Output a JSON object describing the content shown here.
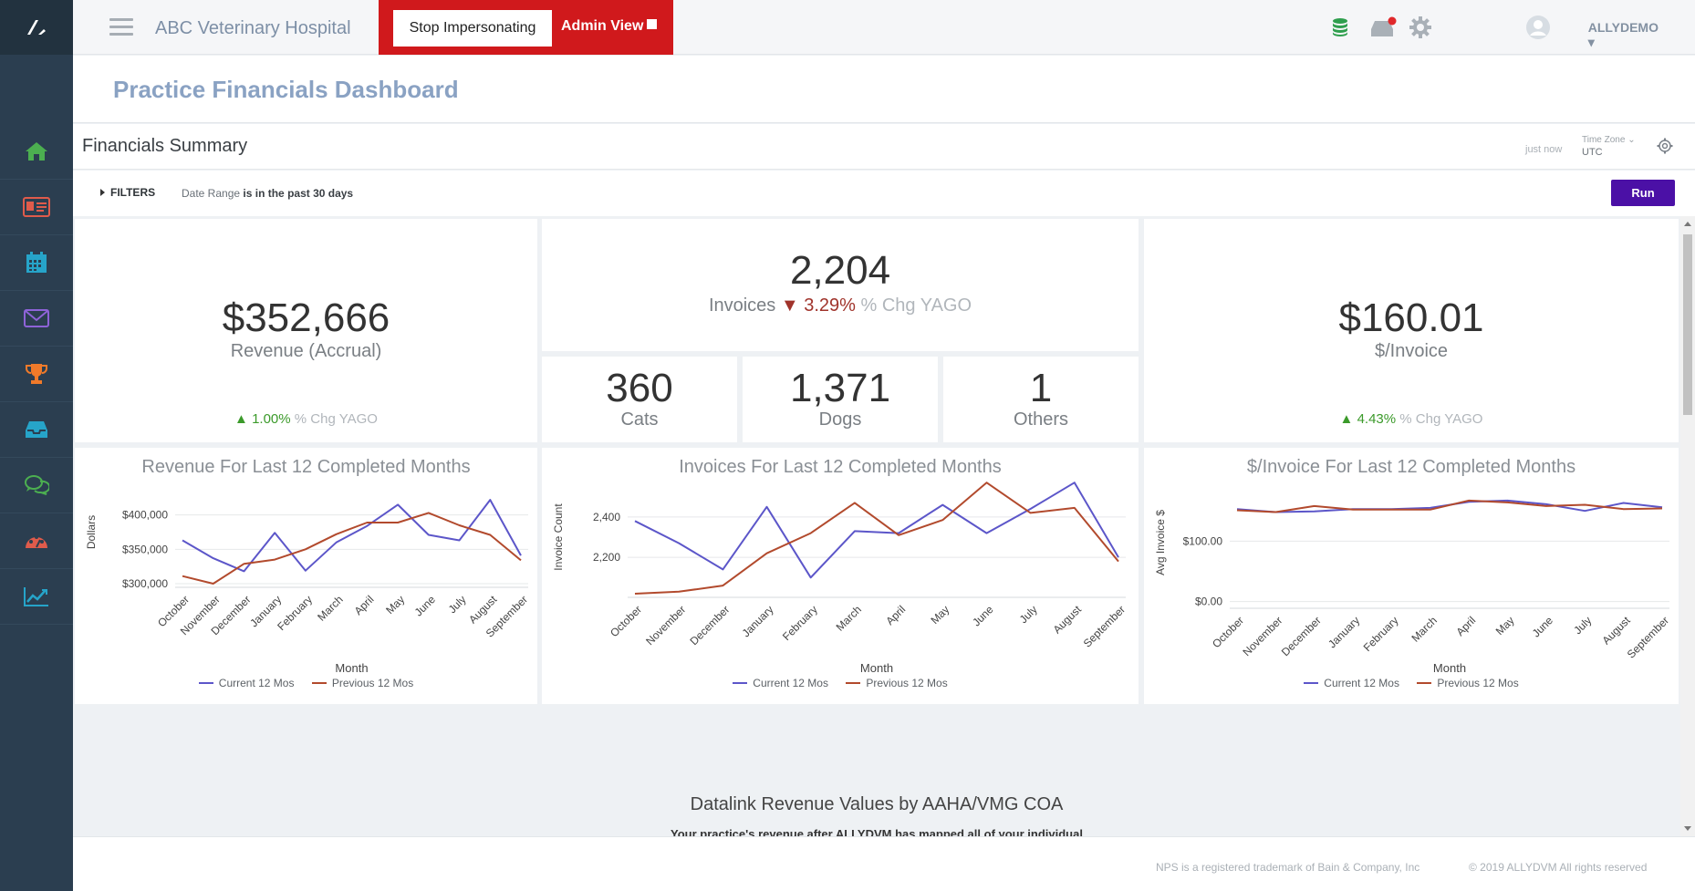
{
  "topbar": {
    "hospital_name": "ABC Veterinary Hospital",
    "stop_impersonating": "Stop Impersonating",
    "admin_view": "Admin View",
    "user": "ALLYDEMO"
  },
  "page": {
    "title": "Practice Financials Dashboard"
  },
  "summary": {
    "title": "Financials Summary",
    "refreshed": "just now",
    "timezone_label": "Time Zone",
    "timezone_value": "UTC"
  },
  "filters": {
    "toggle_label": "FILTERS",
    "date_range_label": "Date Range",
    "date_range_value": "is in the past 30 days",
    "run_label": "Run"
  },
  "kpis": {
    "revenue": {
      "value": "$352,666",
      "label": "Revenue (Accrual)",
      "arrow": "▲",
      "change": "1.00%",
      "change_label": "% Chg YAGO"
    },
    "invoices": {
      "value": "2,204",
      "label": "Invoices",
      "arrow": "▼",
      "change": "3.29%",
      "change_label": "% Chg YAGO"
    },
    "per_invoice": {
      "value": "$160.01",
      "label": "$/Invoice",
      "arrow": "▲",
      "change": "4.43%",
      "change_label": "% Chg YAGO"
    },
    "cats": {
      "value": "360",
      "label": "Cats"
    },
    "dogs": {
      "value": "1,371",
      "label": "Dogs"
    },
    "others": {
      "value": "1",
      "label": "Others"
    }
  },
  "chart_data": [
    {
      "type": "line",
      "title": "Revenue For Last 12 Completed Months",
      "xlabel": "Month",
      "ylabel": "Dollars",
      "categories": [
        "October",
        "November",
        "December",
        "January",
        "February",
        "March",
        "April",
        "May",
        "June",
        "July",
        "August",
        "September"
      ],
      "yticks": [
        300000,
        350000,
        400000
      ],
      "ytick_labels": [
        "$300,000",
        "$350,000",
        "$400,000"
      ],
      "ylim": [
        300000,
        450000
      ],
      "series": [
        {
          "name": "Current 12 Mos",
          "color": "#5c56c9",
          "values": [
            363000,
            337000,
            318000,
            374000,
            319000,
            360000,
            384000,
            415000,
            371000,
            363000,
            422000,
            341000
          ]
        },
        {
          "name": "Previous 12 Mos",
          "color": "#b24a2d",
          "values": [
            311000,
            300000,
            329000,
            335000,
            350000,
            372000,
            389000,
            389000,
            403000,
            385000,
            371000,
            334000
          ]
        }
      ]
    },
    {
      "type": "line",
      "title": "Invoices For Last 12 Completed Months",
      "xlabel": "Month",
      "ylabel": "Invoice Count",
      "categories": [
        "October",
        "November",
        "December",
        "January",
        "February",
        "March",
        "April",
        "May",
        "June",
        "July",
        "August",
        "September"
      ],
      "yticks": [
        2200,
        2400
      ],
      "ytick_labels": [
        "2,200",
        "2,400"
      ],
      "ylim": [
        2020,
        2580
      ],
      "series": [
        {
          "name": "Current 12 Mos",
          "color": "#5c56c9",
          "values": [
            2380,
            2270,
            2140,
            2450,
            2100,
            2330,
            2320,
            2460,
            2320,
            2440,
            2570,
            2200
          ]
        },
        {
          "name": "Previous 12 Mos",
          "color": "#b24a2d",
          "values": [
            2020,
            2030,
            2060,
            2220,
            2320,
            2470,
            2310,
            2385,
            2570,
            2420,
            2445,
            2180
          ]
        }
      ]
    },
    {
      "type": "line",
      "title": "$/Invoice For Last 12 Completed Months",
      "xlabel": "Month",
      "ylabel": "Avg Invoice $",
      "categories": [
        "October",
        "November",
        "December",
        "January",
        "February",
        "March",
        "April",
        "May",
        "June",
        "July",
        "August",
        "September"
      ],
      "yticks": [
        0,
        100
      ],
      "ytick_labels": [
        "$0.00",
        "$100.00"
      ],
      "ylim": [
        -5,
        200
      ],
      "series": [
        {
          "name": "Current 12 Mos",
          "color": "#5c56c9",
          "values": [
            153,
            148,
            149,
            153,
            153,
            155,
            165,
            167,
            161,
            150,
            163,
            156
          ]
        },
        {
          "name": "Previous 12 Mos",
          "color": "#b24a2d",
          "values": [
            151,
            148,
            158,
            152,
            152,
            152,
            167,
            164,
            158,
            160,
            153,
            154
          ]
        }
      ]
    }
  ],
  "datalink": {
    "title": "Datalink Revenue Values by AAHA/VMG COA",
    "subtitle": "Your practice's revenue after ALLYDVM has mapped all of your individual"
  },
  "footer": {
    "nps": "NPS is a registered trademark of Bain & Company, Inc",
    "copyright": "© 2019 ALLYDVM All rights reserved"
  },
  "icons": {
    "nav": [
      "home-icon",
      "contact-card-icon",
      "calendar-icon",
      "mail-icon",
      "trophy-icon",
      "inbox-icon",
      "chat-icon",
      "dashboard-icon",
      "trend-icon"
    ],
    "accent": "#4b10a6",
    "impersonate_bg": "#d0191c"
  }
}
